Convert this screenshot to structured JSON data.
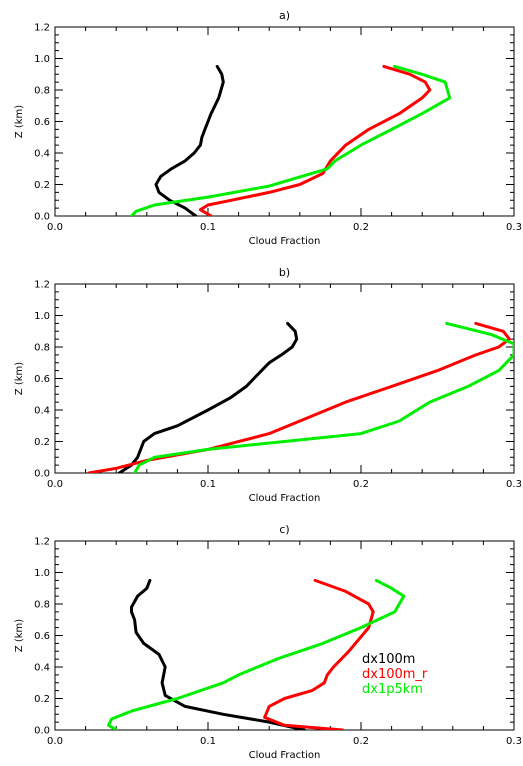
{
  "chart_data": [
    {
      "type": "line",
      "title": "a)",
      "xlabel": "Cloud Fraction",
      "ylabel": "Z (km)",
      "xlim": [
        0.0,
        0.3
      ],
      "ylim": [
        0.0,
        1.2
      ],
      "xticks": [
        "0.0",
        "0.1",
        "0.2",
        "0.3"
      ],
      "yticks": [
        "0.0",
        "0.2",
        "0.4",
        "0.6",
        "0.8",
        "1.0",
        "1.2"
      ],
      "series": [
        {
          "color": "#000000",
          "x": [
            0.092,
            0.085,
            0.075,
            0.068,
            0.066,
            0.069,
            0.076,
            0.085,
            0.091,
            0.095,
            0.096,
            0.098,
            0.1,
            0.102,
            0.107,
            0.11,
            0.109,
            0.106
          ],
          "y": [
            0.0,
            0.05,
            0.1,
            0.15,
            0.2,
            0.25,
            0.3,
            0.35,
            0.4,
            0.45,
            0.5,
            0.55,
            0.6,
            0.65,
            0.75,
            0.85,
            0.9,
            0.95
          ]
        },
        {
          "color": "#ff0000",
          "x": [
            0.102,
            0.095,
            0.1,
            0.115,
            0.14,
            0.16,
            0.175,
            0.18,
            0.19,
            0.205,
            0.225,
            0.24,
            0.245,
            0.242,
            0.232,
            0.215
          ],
          "y": [
            0.0,
            0.04,
            0.07,
            0.1,
            0.15,
            0.2,
            0.27,
            0.35,
            0.45,
            0.55,
            0.65,
            0.75,
            0.8,
            0.85,
            0.9,
            0.95
          ]
        },
        {
          "color": "#00ee00",
          "x": [
            0.05,
            0.053,
            0.065,
            0.1,
            0.14,
            0.178,
            0.183,
            0.2,
            0.22,
            0.24,
            0.258,
            0.255,
            0.24,
            0.222
          ],
          "y": [
            0.0,
            0.03,
            0.07,
            0.12,
            0.19,
            0.3,
            0.35,
            0.45,
            0.55,
            0.65,
            0.75,
            0.85,
            0.9,
            0.95
          ]
        }
      ]
    },
    {
      "type": "line",
      "title": "b)",
      "xlabel": "Cloud Fraction",
      "ylabel": "Z (km)",
      "xlim": [
        0.0,
        0.3
      ],
      "ylim": [
        0.0,
        1.2
      ],
      "xticks": [
        "0.0",
        "0.1",
        "0.2",
        "0.3"
      ],
      "yticks": [
        "0.0",
        "0.2",
        "0.4",
        "0.6",
        "0.8",
        "1.0",
        "1.2"
      ],
      "series": [
        {
          "color": "#000000",
          "x": [
            0.042,
            0.05,
            0.054,
            0.058,
            0.065,
            0.08,
            0.1,
            0.115,
            0.125,
            0.13,
            0.135,
            0.14,
            0.148,
            0.155,
            0.158,
            0.157,
            0.152
          ],
          "y": [
            0.0,
            0.05,
            0.1,
            0.2,
            0.25,
            0.3,
            0.4,
            0.48,
            0.55,
            0.6,
            0.65,
            0.7,
            0.75,
            0.8,
            0.85,
            0.9,
            0.95
          ]
        },
        {
          "color": "#ff0000",
          "x": [
            0.022,
            0.04,
            0.06,
            0.1,
            0.14,
            0.165,
            0.19,
            0.22,
            0.25,
            0.275,
            0.29,
            0.297,
            0.293,
            0.275
          ],
          "y": [
            0.0,
            0.03,
            0.08,
            0.15,
            0.25,
            0.35,
            0.45,
            0.55,
            0.65,
            0.75,
            0.8,
            0.85,
            0.9,
            0.95
          ]
        },
        {
          "color": "#00ee00",
          "x": [
            0.052,
            0.055,
            0.065,
            0.1,
            0.15,
            0.2,
            0.225,
            0.245,
            0.27,
            0.29,
            0.3,
            0.3,
            0.285,
            0.256
          ],
          "y": [
            0.0,
            0.05,
            0.1,
            0.15,
            0.2,
            0.25,
            0.33,
            0.45,
            0.55,
            0.65,
            0.75,
            0.82,
            0.88,
            0.95
          ]
        }
      ]
    },
    {
      "type": "line",
      "title": "c)",
      "xlabel": "Cloud Fraction",
      "ylabel": "Z (km)",
      "xlim": [
        0.0,
        0.3
      ],
      "ylim": [
        0.0,
        1.2
      ],
      "xticks": [
        "0.0",
        "0.1",
        "0.2",
        "0.3"
      ],
      "yticks": [
        "0.0",
        "0.2",
        "0.4",
        "0.6",
        "0.8",
        "1.0",
        "1.2"
      ],
      "legend": {
        "placement": "right",
        "entries": [
          "dx100m",
          "dx100m_r",
          "dx1p5km"
        ]
      },
      "series": [
        {
          "name": "dx100m",
          "color": "#000000",
          "x": [
            0.163,
            0.14,
            0.11,
            0.085,
            0.072,
            0.07,
            0.072,
            0.068,
            0.058,
            0.053,
            0.052,
            0.05,
            0.05,
            0.054,
            0.06,
            0.062
          ],
          "y": [
            0.0,
            0.05,
            0.1,
            0.15,
            0.22,
            0.3,
            0.4,
            0.48,
            0.55,
            0.62,
            0.7,
            0.75,
            0.78,
            0.85,
            0.9,
            0.95
          ]
        },
        {
          "name": "dx100m_r",
          "color": "#ff0000",
          "x": [
            0.188,
            0.15,
            0.137,
            0.14,
            0.15,
            0.168,
            0.176,
            0.178,
            0.182,
            0.192,
            0.205,
            0.208,
            0.205,
            0.19,
            0.17
          ],
          "y": [
            0.0,
            0.03,
            0.08,
            0.15,
            0.2,
            0.25,
            0.3,
            0.35,
            0.4,
            0.5,
            0.65,
            0.75,
            0.8,
            0.88,
            0.95
          ]
        },
        {
          "name": "dx1p5km",
          "color": "#00ee00",
          "x": [
            0.04,
            0.035,
            0.037,
            0.05,
            0.08,
            0.11,
            0.12,
            0.145,
            0.175,
            0.2,
            0.222,
            0.228,
            0.22,
            0.21
          ],
          "y": [
            0.0,
            0.03,
            0.07,
            0.12,
            0.2,
            0.3,
            0.35,
            0.45,
            0.55,
            0.65,
            0.75,
            0.85,
            0.9,
            0.95
          ]
        }
      ]
    }
  ]
}
